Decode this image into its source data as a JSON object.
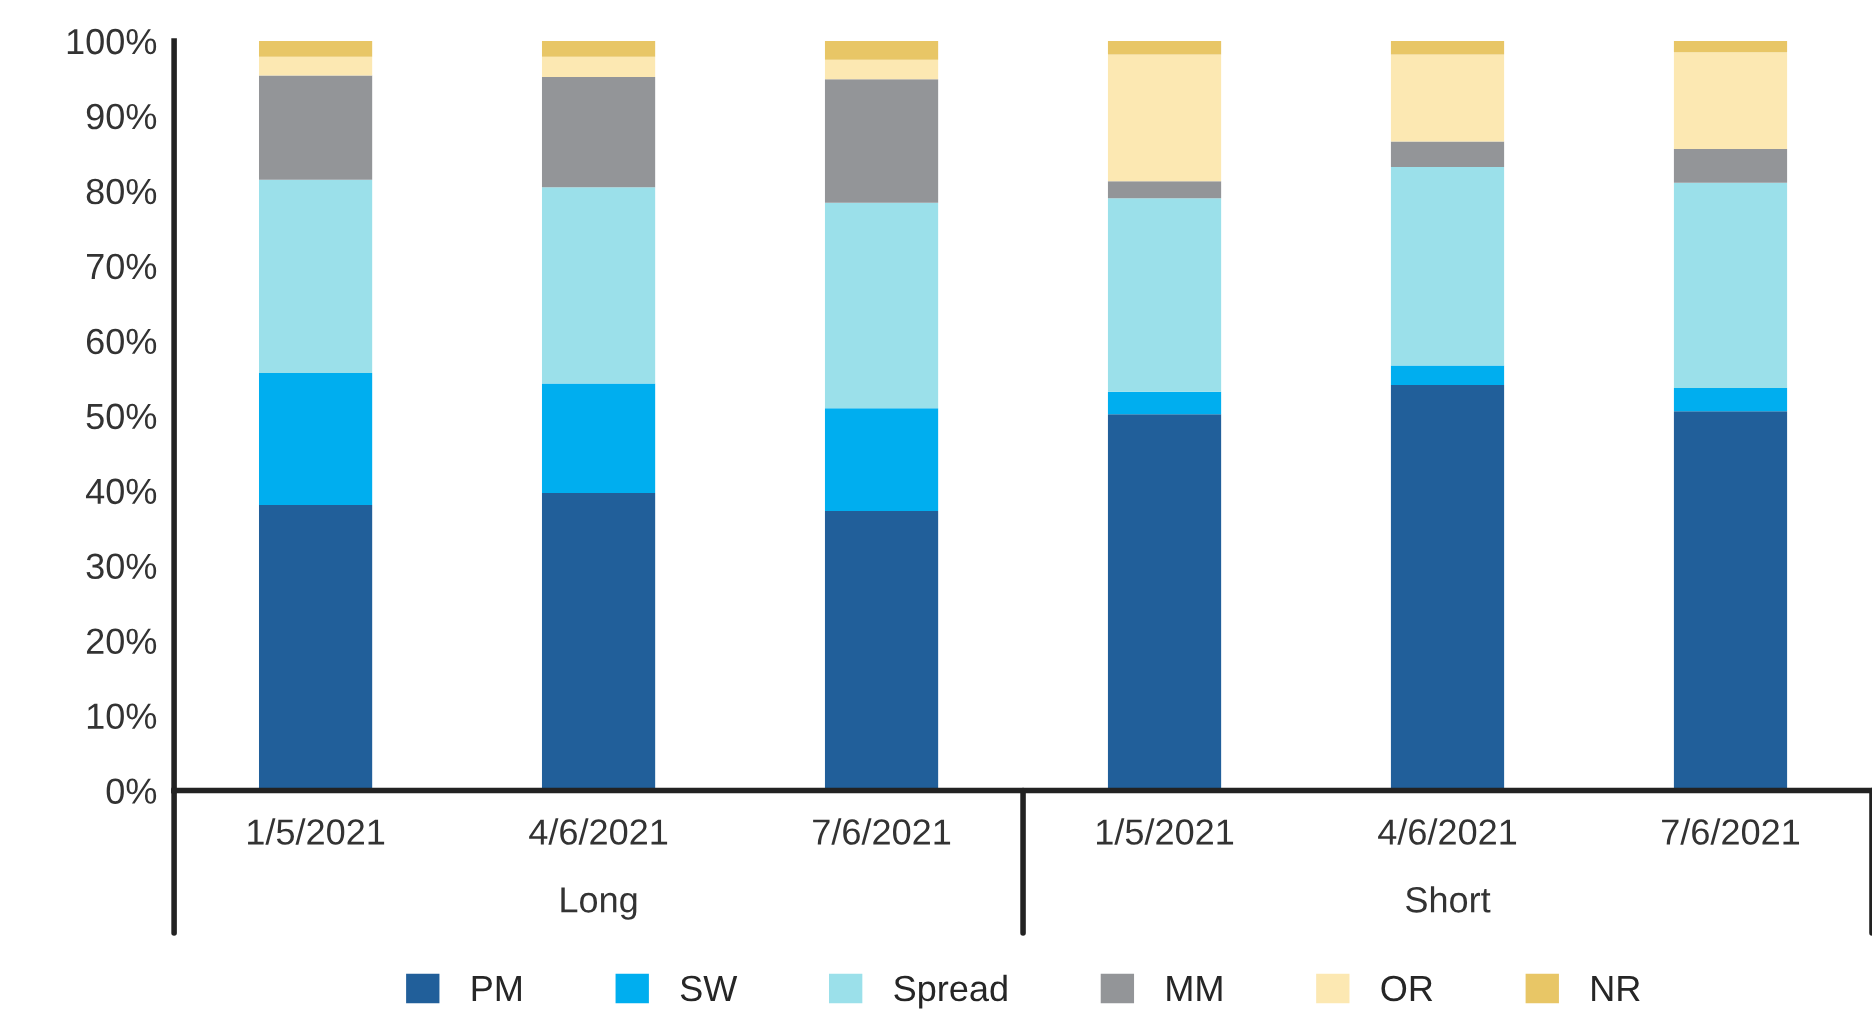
{
  "chart_data": {
    "type": "bar",
    "stacked": true,
    "categories": [
      "1/5/2021",
      "4/6/2021",
      "7/6/2021",
      "1/5/2021",
      "4/6/2021",
      "7/6/2021"
    ],
    "annotations": [
      "Long",
      "Short"
    ],
    "series": [
      {
        "name": "PM",
        "color": "#215f9a",
        "values": [
          38.1,
          39.7,
          37.3,
          50.2,
          54.1,
          50.6
        ]
      },
      {
        "name": "SW",
        "color": "#00aeef",
        "values": [
          17.6,
          14.6,
          13.7,
          3.0,
          2.6,
          3.1
        ]
      },
      {
        "name": "Spread",
        "color": "#9be0ea",
        "values": [
          25.8,
          26.2,
          27.4,
          25.8,
          26.5,
          27.4
        ]
      },
      {
        "name": "MM",
        "color": "#939598",
        "values": [
          13.9,
          14.7,
          16.5,
          2.3,
          3.4,
          4.5
        ]
      },
      {
        "name": "OR",
        "color": "#fce8b2",
        "values": [
          2.5,
          2.7,
          2.6,
          16.9,
          11.6,
          12.9
        ]
      },
      {
        "name": "NR",
        "color": "#e8c666",
        "values": [
          2.1,
          2.1,
          2.5,
          1.8,
          1.8,
          1.5
        ]
      }
    ],
    "ylim": [
      0,
      100
    ],
    "yticks": [
      {
        "value": 0,
        "label": "0%"
      },
      {
        "value": 10,
        "label": "10%"
      },
      {
        "value": 20,
        "label": "20%"
      },
      {
        "value": 30,
        "label": "30%"
      },
      {
        "value": 40,
        "label": "40%"
      },
      {
        "value": 50,
        "label": "50%"
      },
      {
        "value": 60,
        "label": "60%"
      },
      {
        "value": 70,
        "label": "70%"
      },
      {
        "value": 80,
        "label": "80%"
      },
      {
        "value": 90,
        "label": "90%"
      },
      {
        "value": 100,
        "label": "100%"
      }
    ],
    "grid": false,
    "legend": "bottom"
  }
}
